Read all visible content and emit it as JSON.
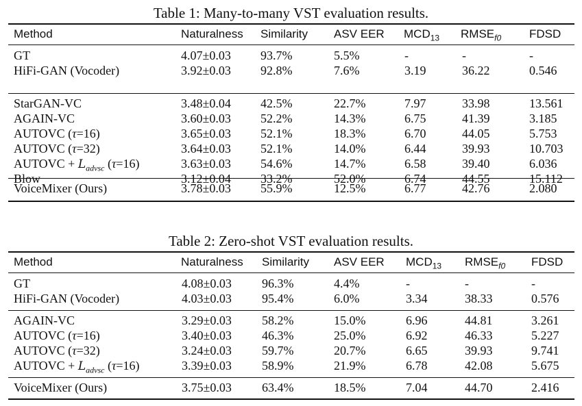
{
  "tables": [
    {
      "caption": "Table 1: Many-to-many VST evaluation results.",
      "header": [
        "Method",
        "Naturalness",
        "Similarity",
        "ASV EER",
        "MCD",
        "13",
        "RMSE",
        "f0",
        "FDSD"
      ],
      "groups": [
        [
          {
            "method": "GT",
            "nat": "4.07±0.03",
            "sim": "93.7%",
            "eer": "5.5%",
            "mcd": "-",
            "rmse": "-",
            "fdsd": "-"
          },
          {
            "method": "HiFi-GAN (Vocoder)",
            "nat": "3.92±0.03",
            "sim": "92.8%",
            "eer": "7.6%",
            "mcd": "3.19",
            "rmse": "36.22",
            "fdsd": "0.546"
          }
        ],
        [
          {
            "method": "StarGAN-VC",
            "nat": "3.48±0.04",
            "sim": "42.5%",
            "eer": "22.7%",
            "mcd": "7.97",
            "rmse": "33.98",
            "fdsd": "13.561"
          },
          {
            "method": "AGAIN-VC",
            "nat": "3.60±0.03",
            "sim": "52.2%",
            "eer": "14.3%",
            "mcd": "6.75",
            "rmse": "41.39",
            "fdsd": "3.185"
          },
          {
            "method_pre": "AUTOVC (",
            "tau": "τ",
            "method_post": "=16)",
            "nat": "3.65±0.03",
            "sim": "52.1%",
            "eer": "18.3%",
            "mcd": "6.70",
            "rmse": "44.05",
            "fdsd": "5.753"
          },
          {
            "method_pre": "AUTOVC (",
            "tau": "τ",
            "method_post": "=32)",
            "nat": "3.64±0.03",
            "sim": "52.1%",
            "eer": "14.0%",
            "mcd": "6.44",
            "rmse": "39.93",
            "fdsd": "10.703"
          },
          {
            "method_pre": "AUTOVC + ",
            "loss": "L",
            "loss_sub": "advsc",
            "method_mid": " (",
            "tau": "τ",
            "method_post": "=16)",
            "nat": "3.63±0.03",
            "sim": "54.6%",
            "eer": "14.7%",
            "mcd": "6.58",
            "rmse": "39.40",
            "fdsd": "6.036"
          },
          {
            "method": "Blow",
            "nat": "3.12±0.04",
            "sim": "33.2%",
            "eer": "52.0%",
            "mcd": "6.74",
            "rmse": "44.55",
            "fdsd": "15.112"
          }
        ],
        [
          {
            "method": "VoiceMixer (Ours)",
            "nat": "3.78±0.03",
            "sim": "55.9%",
            "eer": "12.5%",
            "mcd": "6.77",
            "rmse": "42.76",
            "fdsd": "2.080"
          }
        ]
      ]
    },
    {
      "caption": "Table 2: Zero-shot VST evaluation results.",
      "header": [
        "Method",
        "Naturalness",
        "Similarity",
        "ASV EER",
        "MCD",
        "13",
        "RMSE",
        "f0",
        "FDSD"
      ],
      "groups": [
        [
          {
            "method": "GT",
            "nat": "4.08±0.03",
            "sim": "96.3%",
            "eer": "4.4%",
            "mcd": "-",
            "rmse": "-",
            "fdsd": "-"
          },
          {
            "method": "HiFi-GAN (Vocoder)",
            "nat": "4.03±0.03",
            "sim": "95.4%",
            "eer": "6.0%",
            "mcd": "3.34",
            "rmse": "38.33",
            "fdsd": "0.576"
          }
        ],
        [
          {
            "method": "AGAIN-VC",
            "nat": "3.29±0.03",
            "sim": "58.2%",
            "eer": "15.0%",
            "mcd": "6.96",
            "rmse": "44.81",
            "fdsd": "3.261"
          },
          {
            "method_pre": "AUTOVC (",
            "tau": "τ",
            "method_post": "=16)",
            "nat": "3.40±0.03",
            "sim": "46.3%",
            "eer": "25.0%",
            "mcd": "6.92",
            "rmse": "46.33",
            "fdsd": "5.227"
          },
          {
            "method_pre": "AUTOVC (",
            "tau": "τ",
            "method_post": "=32)",
            "nat": "3.24±0.03",
            "sim": "59.7%",
            "eer": "20.7%",
            "mcd": "6.65",
            "rmse": "39.93",
            "fdsd": "9.741"
          },
          {
            "method_pre": "AUTOVC + ",
            "loss": "L",
            "loss_sub": "advsc",
            "method_mid": " (",
            "tau": "τ",
            "method_post": "=16)",
            "nat": "3.39±0.03",
            "sim": "58.9%",
            "eer": "21.9%",
            "mcd": "6.78",
            "rmse": "42.08",
            "fdsd": "5.675"
          }
        ],
        [
          {
            "method": "VoiceMixer (Ours)",
            "nat": "3.75±0.03",
            "sim": "63.4%",
            "eer": "18.5%",
            "mcd": "7.04",
            "rmse": "44.70",
            "fdsd": "2.416"
          }
        ]
      ]
    }
  ]
}
